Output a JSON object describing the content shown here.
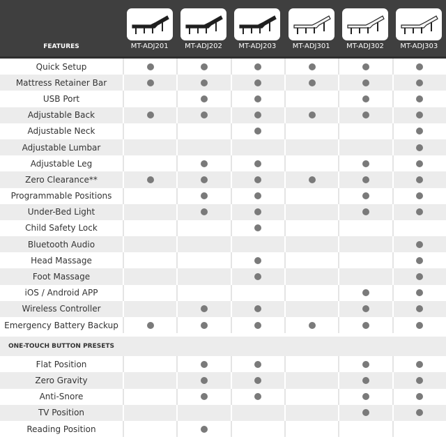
{
  "header": {
    "features_label": "FEATURES",
    "models": [
      "MT-ADJ201",
      "MT-ADJ202",
      "MT-ADJ203",
      "MT-ADJ301",
      "MT-ADJ302",
      "MT-ADJ303"
    ],
    "model_frame_colors": [
      "dark",
      "dark",
      "dark",
      "light",
      "light",
      "light"
    ]
  },
  "features": [
    {
      "name": "Quick Setup",
      "has": [
        1,
        1,
        1,
        1,
        1,
        1
      ]
    },
    {
      "name": "Mattress Retainer Bar",
      "has": [
        1,
        1,
        1,
        1,
        1,
        1
      ]
    },
    {
      "name": "USB Port",
      "has": [
        0,
        1,
        1,
        0,
        1,
        1
      ]
    },
    {
      "name": "Adjustable Back",
      "has": [
        1,
        1,
        1,
        1,
        1,
        1
      ]
    },
    {
      "name": "Adjustable Neck",
      "has": [
        0,
        0,
        1,
        0,
        0,
        1
      ]
    },
    {
      "name": "Adjustable Lumbar",
      "has": [
        0,
        0,
        0,
        0,
        0,
        1
      ]
    },
    {
      "name": "Adjustable Leg",
      "has": [
        0,
        1,
        1,
        0,
        1,
        1
      ]
    },
    {
      "name": "Zero Clearance**",
      "has": [
        1,
        1,
        1,
        1,
        1,
        1
      ]
    },
    {
      "name": "Programmable Positions",
      "has": [
        0,
        1,
        1,
        0,
        1,
        1
      ]
    },
    {
      "name": "Under-Bed Light",
      "has": [
        0,
        1,
        1,
        0,
        1,
        1
      ]
    },
    {
      "name": "Child Safety Lock",
      "has": [
        0,
        0,
        1,
        0,
        0,
        0
      ]
    },
    {
      "name": "Bluetooth Audio",
      "has": [
        0,
        0,
        0,
        0,
        0,
        1
      ]
    },
    {
      "name": "Head Massage",
      "has": [
        0,
        0,
        1,
        0,
        0,
        1
      ]
    },
    {
      "name": "Foot Massage",
      "has": [
        0,
        0,
        1,
        0,
        0,
        1
      ]
    },
    {
      "name": "iOS / Android APP",
      "has": [
        0,
        0,
        0,
        0,
        1,
        1
      ]
    },
    {
      "name": "Wireless Controller",
      "has": [
        0,
        1,
        1,
        0,
        1,
        1
      ]
    },
    {
      "name": "Emergency Battery Backup",
      "has": [
        1,
        1,
        1,
        1,
        1,
        1
      ]
    }
  ],
  "presets_title": "ONE-TOUCH BUTTON PRESETS",
  "presets": [
    {
      "name": "Flat Position",
      "has": [
        0,
        1,
        1,
        0,
        1,
        1
      ]
    },
    {
      "name": "Zero Gravity",
      "has": [
        0,
        1,
        1,
        0,
        1,
        1
      ]
    },
    {
      "name": "Anti-Snore",
      "has": [
        0,
        1,
        1,
        0,
        1,
        1
      ]
    },
    {
      "name": "TV Position",
      "has": [
        0,
        0,
        0,
        0,
        1,
        1
      ]
    },
    {
      "name": "Reading Position",
      "has": [
        0,
        1,
        0,
        0,
        0,
        0
      ]
    }
  ],
  "colors": {
    "header_bg": "#3f3f3f",
    "dot": "#7a7a7a",
    "stripe": "#ececec"
  }
}
